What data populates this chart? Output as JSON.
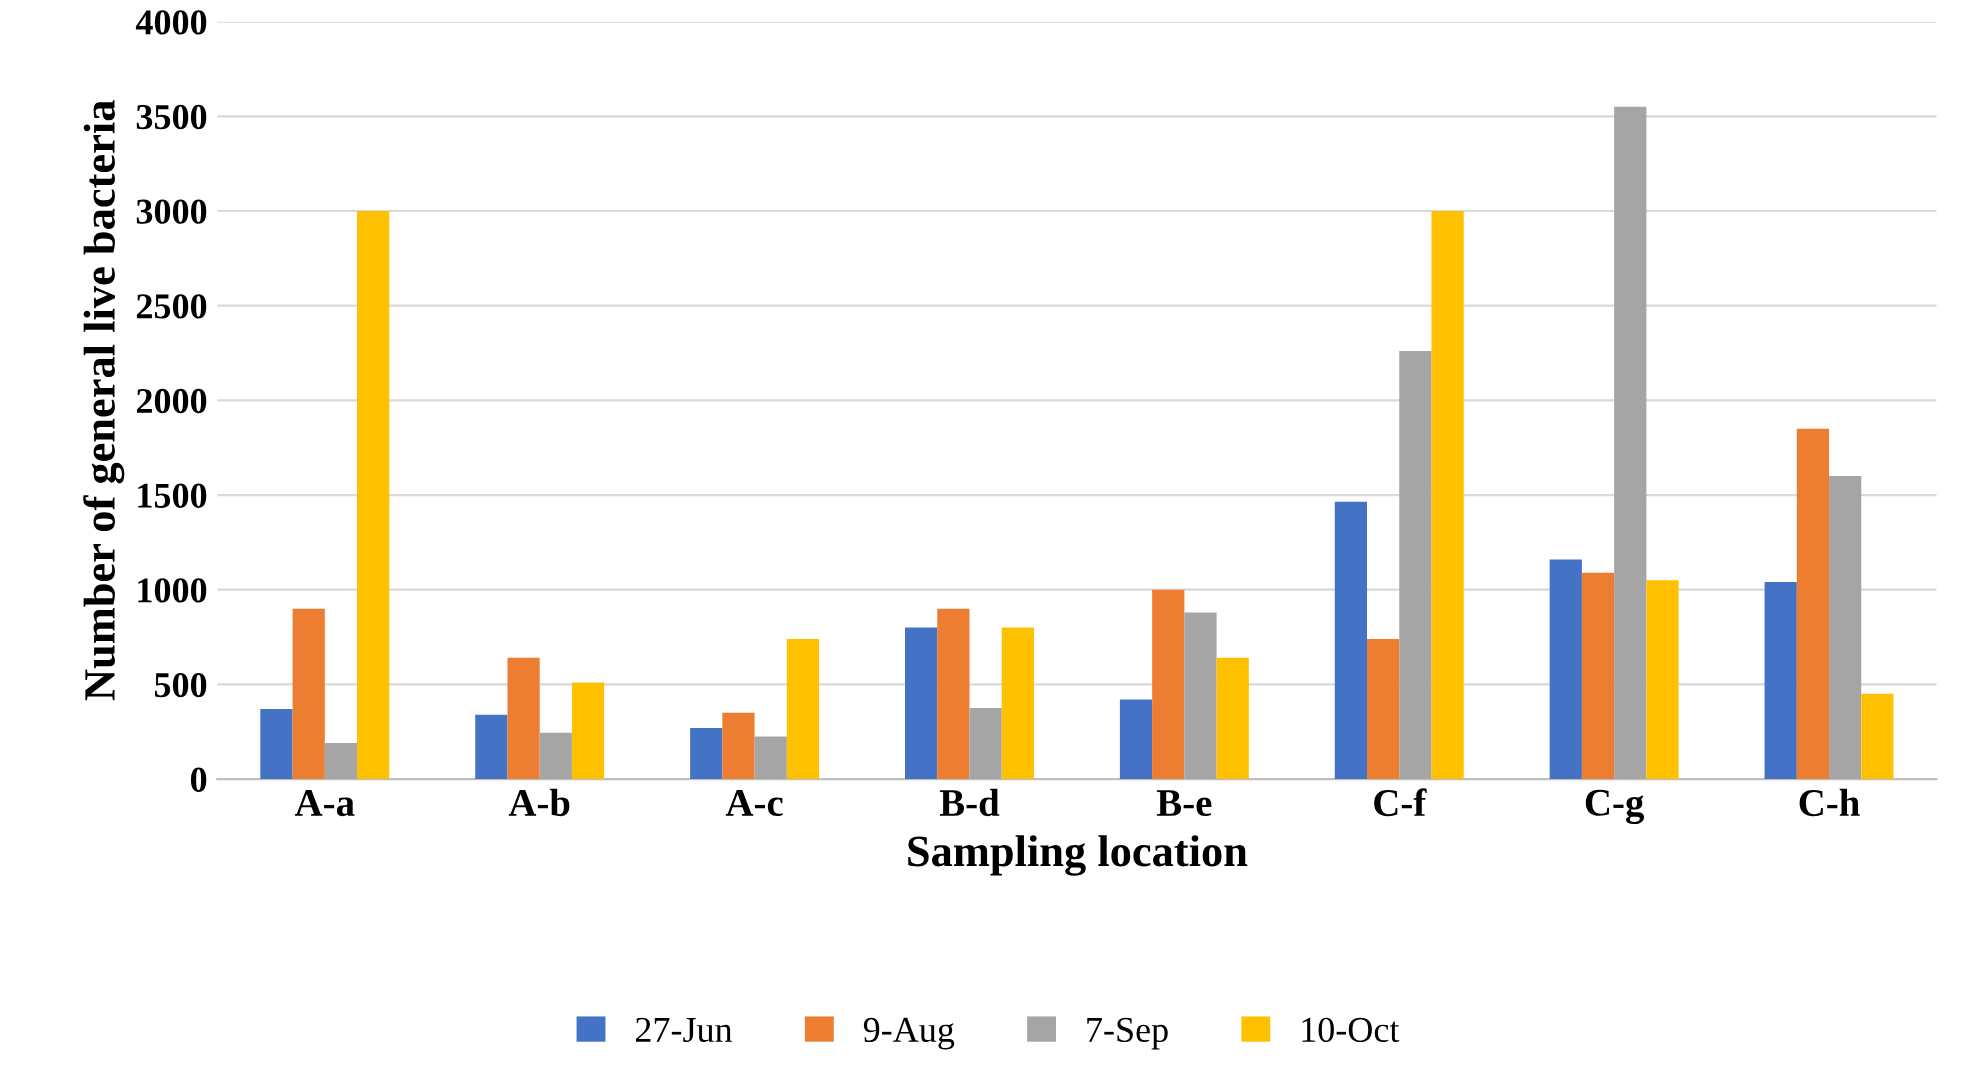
{
  "chart_data": {
    "type": "bar",
    "xlabel": "Sampling location",
    "ylabel": "Number of general live bacteria",
    "categories": [
      "A-a",
      "A-b",
      "A-c",
      "B-d",
      "B-e",
      "C-f",
      "C-g",
      "C-h"
    ],
    "series": [
      {
        "name": "27-Jun",
        "color": "#4472c4",
        "values": [
          370,
          340,
          270,
          800,
          420,
          1465,
          1160,
          1040
        ]
      },
      {
        "name": "9-Aug",
        "color": "#ed7d31",
        "values": [
          900,
          640,
          350,
          900,
          1000,
          740,
          1090,
          1850
        ]
      },
      {
        "name": "7-Sep",
        "color": "#a5a5a5",
        "values": [
          190,
          245,
          225,
          375,
          880,
          2260,
          3550,
          1600
        ]
      },
      {
        "name": "10-Oct",
        "color": "#ffc000",
        "values": [
          3000,
          510,
          740,
          800,
          640,
          3000,
          1050,
          450
        ]
      }
    ],
    "ylim": [
      0,
      4000
    ],
    "yticks": [
      0,
      500,
      1000,
      1500,
      2000,
      2500,
      3000,
      3500,
      4000
    ],
    "grid": "y",
    "legend": "bottom"
  }
}
